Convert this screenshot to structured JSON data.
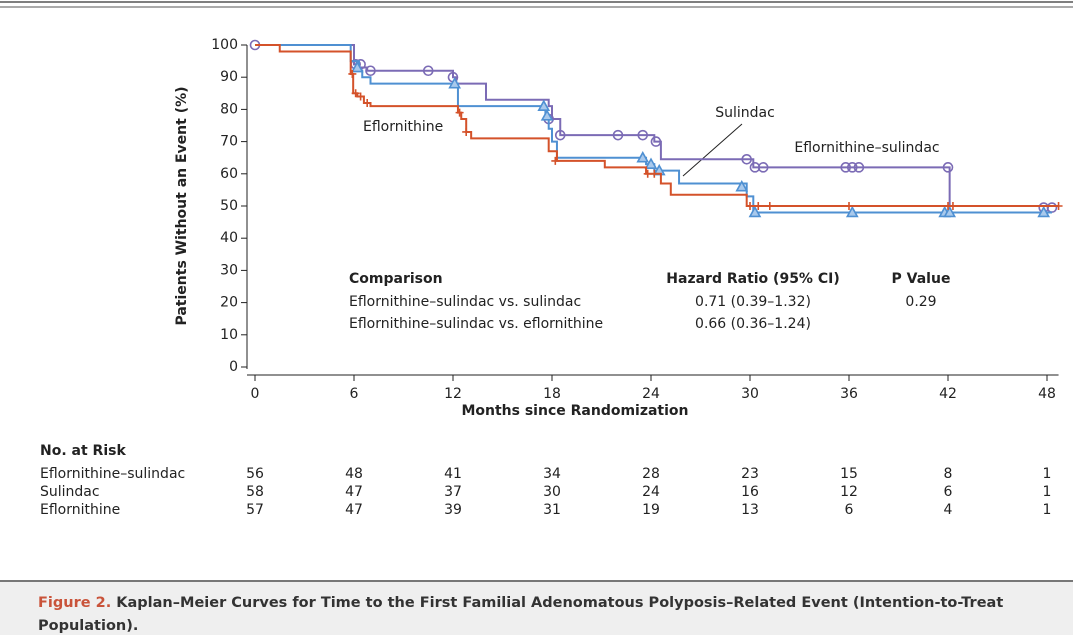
{
  "chart_data": {
    "type": "line",
    "step": true,
    "x_label": "Months since Randomization",
    "y_label": "Patients Without an Event (%)",
    "xlim": [
      0,
      48.7
    ],
    "xticks": [
      0,
      6,
      12,
      18,
      24,
      30,
      36,
      42,
      48
    ],
    "ylim": [
      0,
      100
    ],
    "yticks": [
      0,
      10,
      20,
      30,
      40,
      50,
      60,
      70,
      80,
      90,
      100
    ],
    "series": [
      {
        "name": "Eflornithine–sulindac",
        "color": "#7b6bb5",
        "marker": "circle",
        "x": [
          0,
          6,
          6.3,
          6.8,
          12,
          12.2,
          14,
          17.8,
          18,
          18.5,
          24.2,
          24.6,
          29.9,
          30.2,
          42.1,
          48.5
        ],
        "values": [
          100,
          94,
          93,
          92,
          90,
          88,
          83,
          81,
          77,
          72,
          70,
          64.5,
          64.5,
          62,
          50,
          50
        ],
        "censored_x": [
          0,
          6.1,
          6.4,
          7,
          10.5,
          12,
          17.8,
          18.5,
          22,
          23.5,
          24.3,
          29.8,
          30.3,
          30.8,
          35.8,
          36.2,
          36.6,
          42,
          47.8,
          48.3
        ],
        "censored_values": [
          100,
          94,
          94,
          92,
          92,
          90,
          77,
          72,
          72,
          72,
          70,
          64.5,
          62,
          62,
          62,
          62,
          62,
          62,
          49.5,
          49.5
        ]
      },
      {
        "name": "Sulindac",
        "color": "#4f90d2",
        "marker": "triangle",
        "x": [
          0,
          5.8,
          6.3,
          6.5,
          7,
          12.3,
          17.6,
          17.8,
          18,
          18.3,
          23.7,
          24.2,
          25.7,
          29.8,
          30.2,
          48.3
        ],
        "values": [
          100,
          95,
          92,
          90,
          88,
          81,
          78,
          74,
          70,
          65,
          63,
          61,
          57,
          53,
          48,
          48
        ],
        "censored_x": [
          6.2,
          12.1,
          17.5,
          17.7,
          23.5,
          24,
          24.5,
          29.5,
          30.3,
          36.2,
          41.8,
          42.1,
          47.8
        ],
        "censored_values": [
          93,
          88,
          81,
          78,
          65,
          63,
          61,
          56,
          48,
          48,
          48,
          48,
          48
        ]
      },
      {
        "name": "Eflornithine",
        "color": "#d4522a",
        "marker": "plus",
        "x": [
          0,
          1.5,
          5.8,
          5.95,
          6.2,
          6.6,
          7,
          12.3,
          12.5,
          12.8,
          13.1,
          17.8,
          18.3,
          21.2,
          23.7,
          24.6,
          25.2,
          29.8,
          48.7
        ],
        "values": [
          100,
          98,
          91,
          85,
          84,
          82,
          81,
          79,
          77,
          73,
          71,
          67,
          64,
          62,
          60,
          57,
          53.5,
          50,
          50
        ],
        "censored_x": [
          5.9,
          6.1,
          6.4,
          6.8,
          12.4,
          12.8,
          18.2,
          23.8,
          24.2,
          30,
          30.5,
          31.2,
          36,
          42,
          42.3,
          48.7
        ],
        "censored_values": [
          91,
          85,
          84,
          82,
          79,
          73,
          64,
          60,
          60,
          50,
          50,
          50,
          50,
          50,
          50,
          50
        ]
      }
    ],
    "comparison_table": {
      "headers": [
        "Comparison",
        "Hazard Ratio (95% CI)",
        "P Value"
      ],
      "rows": [
        [
          "Eflornithine–sulindac vs. sulindac",
          "0.71 (0.39–1.32)",
          "0.29"
        ],
        [
          "Eflornithine–sulindac vs. eflornithine",
          "0.66 (0.36–1.24)",
          null
        ]
      ]
    },
    "risk_table": {
      "title": "No. at Risk",
      "rows": [
        {
          "name": "Eflornithine–sulindac",
          "values": [
            56,
            48,
            41,
            34,
            28,
            23,
            15,
            8,
            1
          ]
        },
        {
          "name": "Sulindac",
          "values": [
            58,
            47,
            37,
            30,
            24,
            16,
            12,
            6,
            1
          ]
        },
        {
          "name": "Eflornithine",
          "values": [
            57,
            47,
            39,
            31,
            19,
            13,
            6,
            4,
            1
          ]
        }
      ]
    },
    "caption": {
      "label": "Figure 2.",
      "text": "Kaplan–Meier Curves for Time to the First Familial Adenomatous Polyposis–Related Event (Intention-to-Treat Population)."
    }
  }
}
